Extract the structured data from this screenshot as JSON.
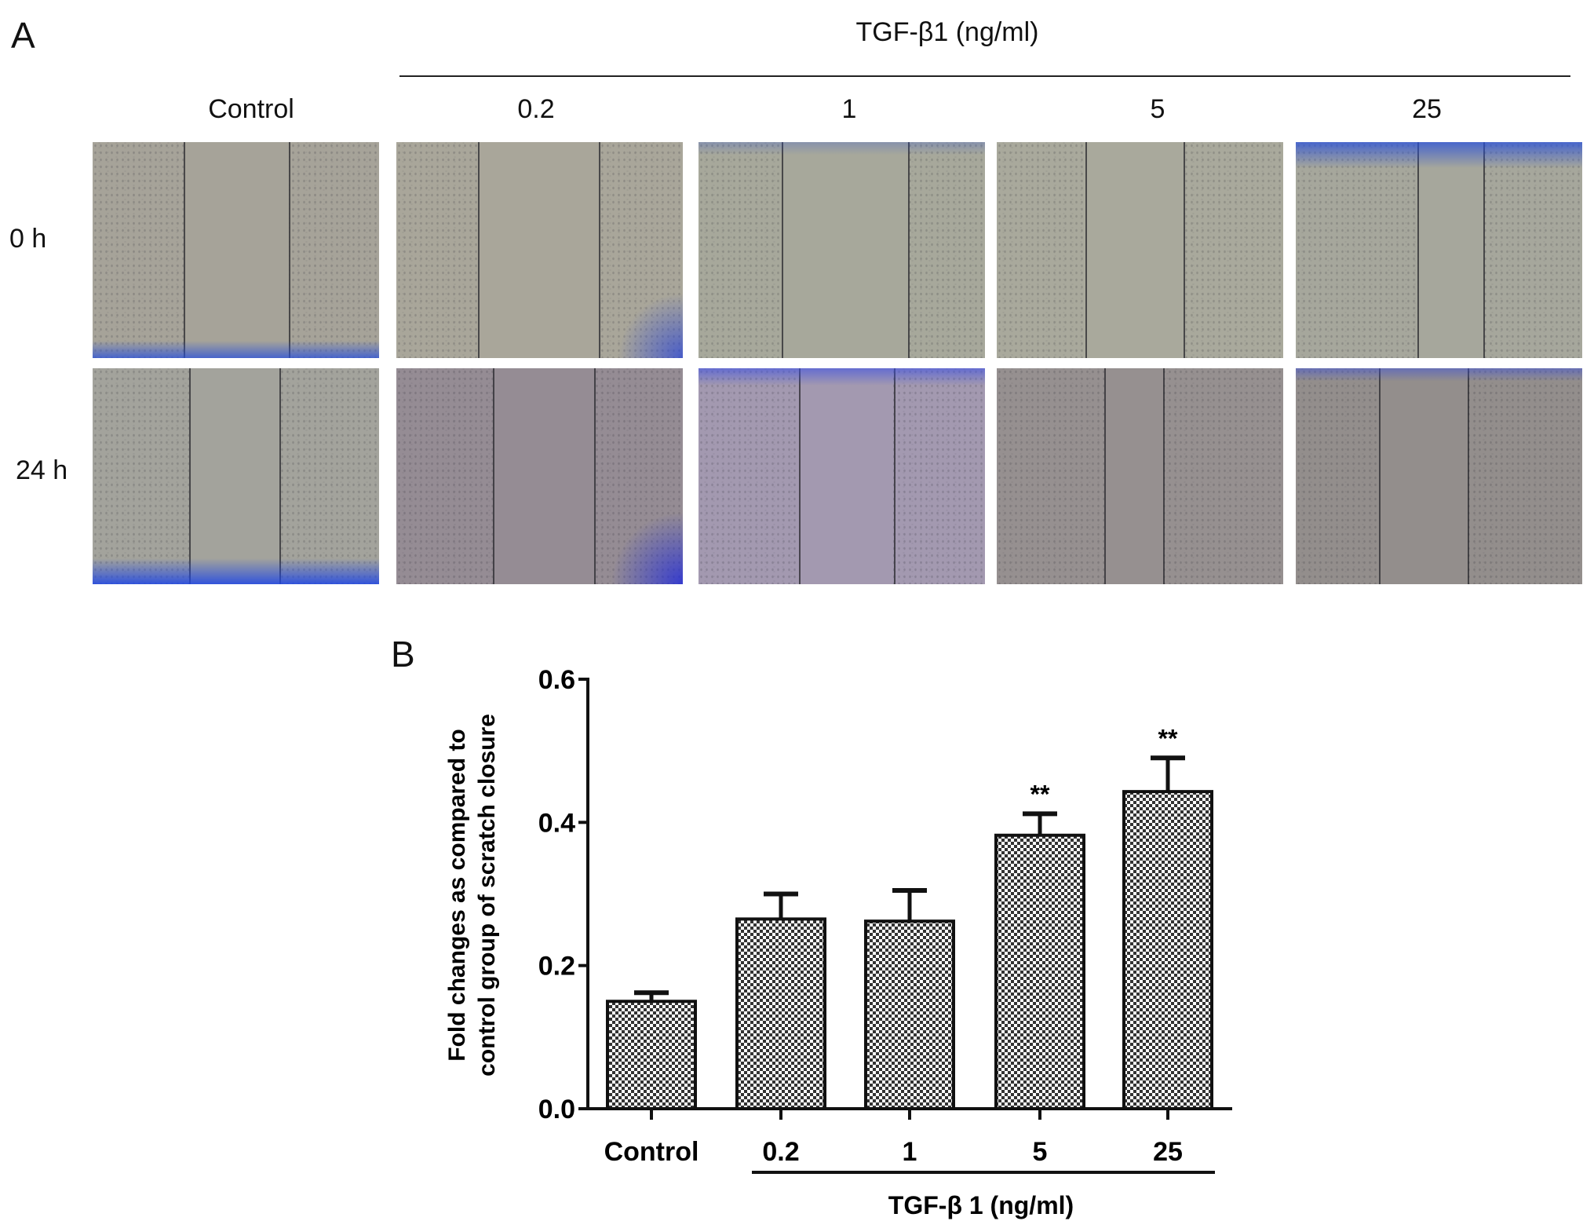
{
  "panel_a": {
    "label": "A",
    "group_title": "TGF-β1 (ng/ml)",
    "columns": [
      "Control",
      "0.2",
      "1",
      "5",
      "25"
    ],
    "rows": [
      "0 h",
      "24 h"
    ],
    "image_colors": [
      [
        "#a6a399",
        "#a9a69a",
        "#a7a89b",
        "#a9a99c",
        "#a6a79c"
      ],
      [
        "#a3a39c",
        "#958c94",
        "#a399b0",
        "#969090",
        "#938e8c"
      ]
    ]
  },
  "panel_b": {
    "label": "B",
    "chart_data": {
      "type": "bar",
      "categories": [
        "Control",
        "0.2",
        "1",
        "5",
        "25"
      ],
      "values": [
        0.15,
        0.265,
        0.262,
        0.382,
        0.443
      ],
      "error_upper": [
        0.162,
        0.3,
        0.305,
        0.412,
        0.49
      ],
      "annotations": [
        "",
        "",
        "",
        "**",
        "**"
      ],
      "ylabel_lines": [
        "Fold changes as compared to",
        "control group of scratch closure"
      ],
      "xlabel": "TGF-β 1 (ng/ml)",
      "ylim": [
        0,
        0.6
      ],
      "yticks": [
        "0.0",
        "0.2",
        "0.4",
        "0.6"
      ],
      "grid": false,
      "bar_fill": "checkerboard"
    }
  }
}
